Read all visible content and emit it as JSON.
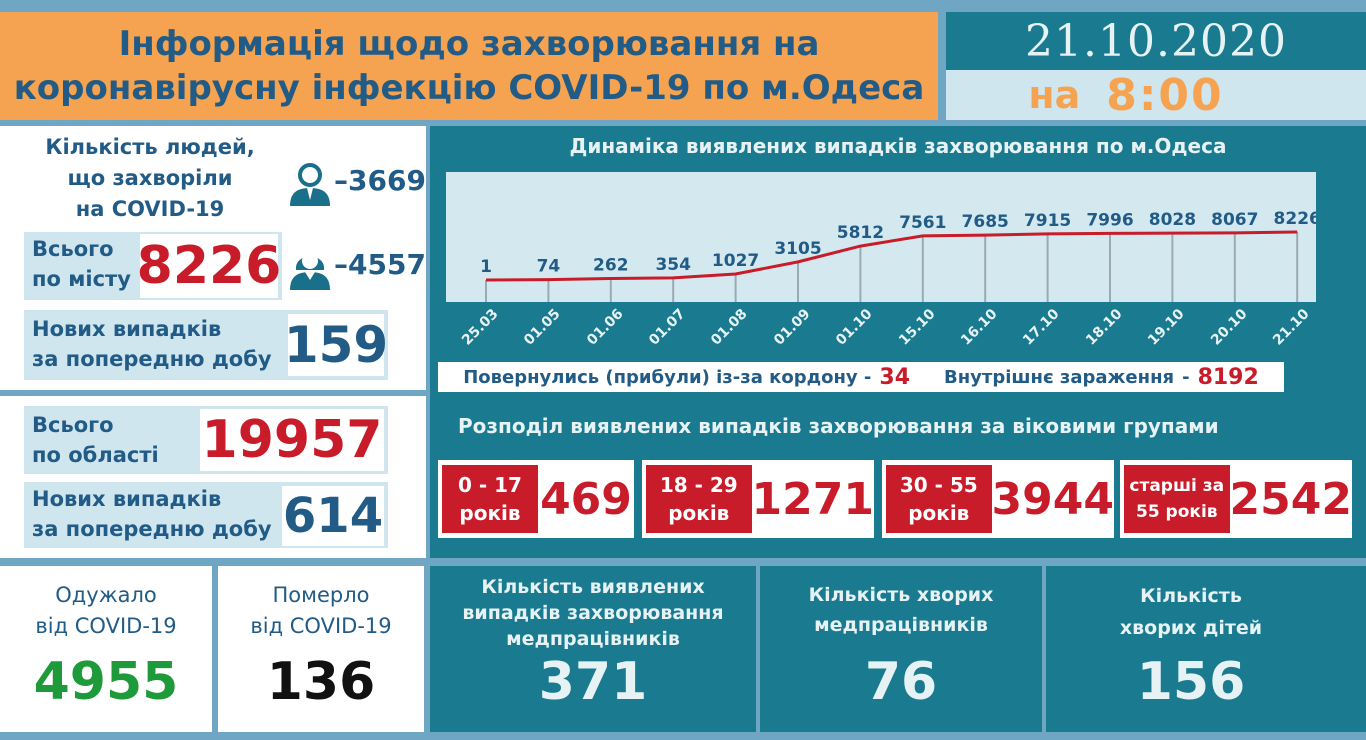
{
  "header": {
    "title_line1": "Інформація щодо захворювання на",
    "title_line2": "коронавірусну інфекцію COVID-19 по м.Одеса",
    "date": "21.10.2020",
    "time_prefix": "на",
    "time": "8:00"
  },
  "city": {
    "people_label_line1": "Кількість людей,",
    "people_label_line2": "що захворіли",
    "people_label_line3": "на COVID-19",
    "male_icon": "male-person-icon",
    "male_count": "–3669",
    "female_icon": "female-person-icon",
    "female_count": "–4557",
    "total_label_line1": "Всього",
    "total_label_line2": "по місту",
    "total": "8226",
    "new_label_line1": "Нових випадків",
    "new_label_line2": "за попередню добу",
    "new": "159"
  },
  "region": {
    "total_label_line1": "Всього",
    "total_label_line2": "по області",
    "total": "19957",
    "new_label_line1": "Нових випадків",
    "new_label_line2": "за попередню добу",
    "new": "614"
  },
  "recovered": {
    "label_line1": "Одужало",
    "label_line2": "від COVID-19",
    "value": "4955"
  },
  "died": {
    "label_line1": "Померло",
    "label_line2": "від COVID-19",
    "value": "136"
  },
  "chart": {
    "title": "Динаміка виявлених випадків захворювання по м.Одеса"
  },
  "chart_data": {
    "type": "line",
    "title": "Динаміка виявлених випадків захворювання по м.Одеса",
    "categories": [
      "25.03",
      "01.05",
      "01.06",
      "01.07",
      "01.08",
      "01.09",
      "01.10",
      "15.10",
      "16.10",
      "17.10",
      "18.10",
      "19.10",
      "20.10",
      "21.10"
    ],
    "values": [
      1,
      74,
      262,
      354,
      1027,
      3105,
      5812,
      7561,
      7685,
      7915,
      7996,
      8028,
      8067,
      8226
    ],
    "xlabel": "",
    "ylabel": "",
    "grid": "vertical",
    "line_color": "#c81c2a"
  },
  "border": {
    "returned_label": "Повернулись (прибули) із-за кордону -",
    "returned": "34",
    "internal_label": "Внутрішнє зараження",
    "internal_sep": "-",
    "internal": "8192"
  },
  "ages": {
    "title": "Розподіл виявлених випадків захворювання за віковими групами",
    "groups": [
      {
        "line1": "0 - 17",
        "line2": "років",
        "value": "469"
      },
      {
        "line1": "18 - 29",
        "line2": "років",
        "value": "1271"
      },
      {
        "line1": "30 - 55",
        "line2": "років",
        "value": "3944"
      },
      {
        "line1": "старші за",
        "line2": "55 років",
        "value": "2542"
      }
    ]
  },
  "medical": {
    "detected_label_line1": "Кількість виявлених",
    "detected_label_line2": "випадків захворювання",
    "detected_label_line3": "медпрацівників",
    "detected": "371",
    "sick_label_line1": "Кількість хворих",
    "sick_label_line2": "медпрацівників",
    "sick": "76",
    "children_label_line1": "Кількість",
    "children_label_line2": "хворих дітей",
    "children": "156"
  },
  "colors": {
    "orange": "#f5a350",
    "teal": "#1a7a8f",
    "navy_text": "#215b86",
    "red": "#c81c2a",
    "green": "#1f9a3a",
    "light_blue": "#cfe6ee"
  }
}
